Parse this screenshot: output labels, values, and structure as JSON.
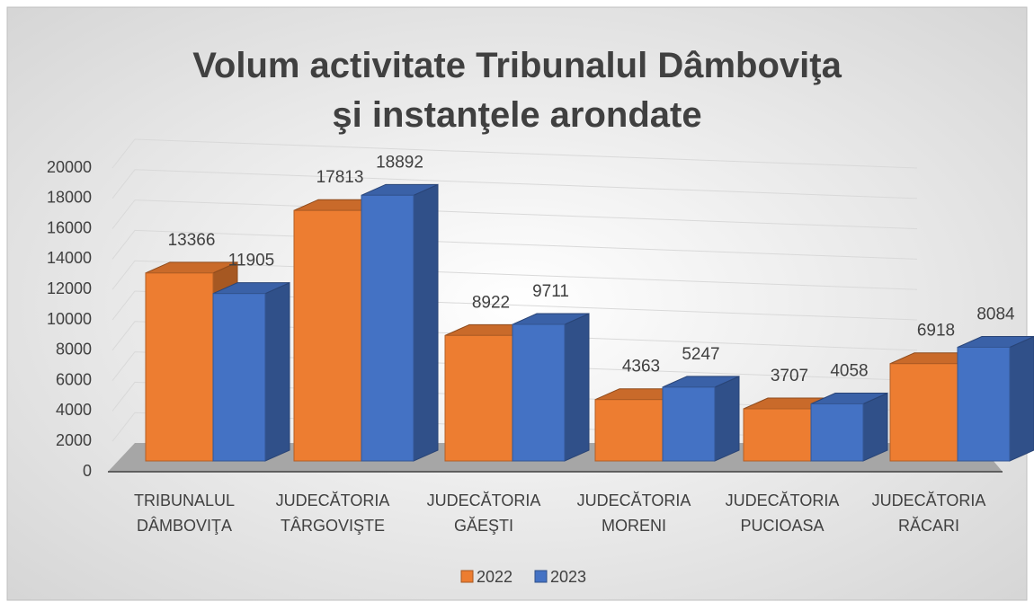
{
  "chart_data": {
    "type": "bar3d",
    "title": "Volum activitate Tribunalul Dâmboviţa şi instanţele arondate",
    "categories": [
      "TRIBUNALUL DÂMBOVIŢA",
      "JUDECĂTORIA TÂRGOVIŞTE",
      "JUDECĂTORIA GĂEŞTI",
      "JUDECĂTORIA MORENI",
      "JUDECĂTORIA PUCIOASA",
      "JUDECĂTORIA RĂCARI"
    ],
    "series": [
      {
        "name": "2022",
        "color": "#ed7d31",
        "values": [
          13366,
          17813,
          8922,
          4363,
          3707,
          6918
        ]
      },
      {
        "name": "2023",
        "color": "#4472c4",
        "values": [
          11905,
          18892,
          9711,
          5247,
          4058,
          8084
        ]
      }
    ],
    "ylim": [
      0,
      20000
    ],
    "yticks": [
      0,
      2000,
      4000,
      6000,
      8000,
      10000,
      12000,
      14000,
      16000,
      18000,
      20000
    ],
    "grid": true,
    "legend": "bottom"
  }
}
